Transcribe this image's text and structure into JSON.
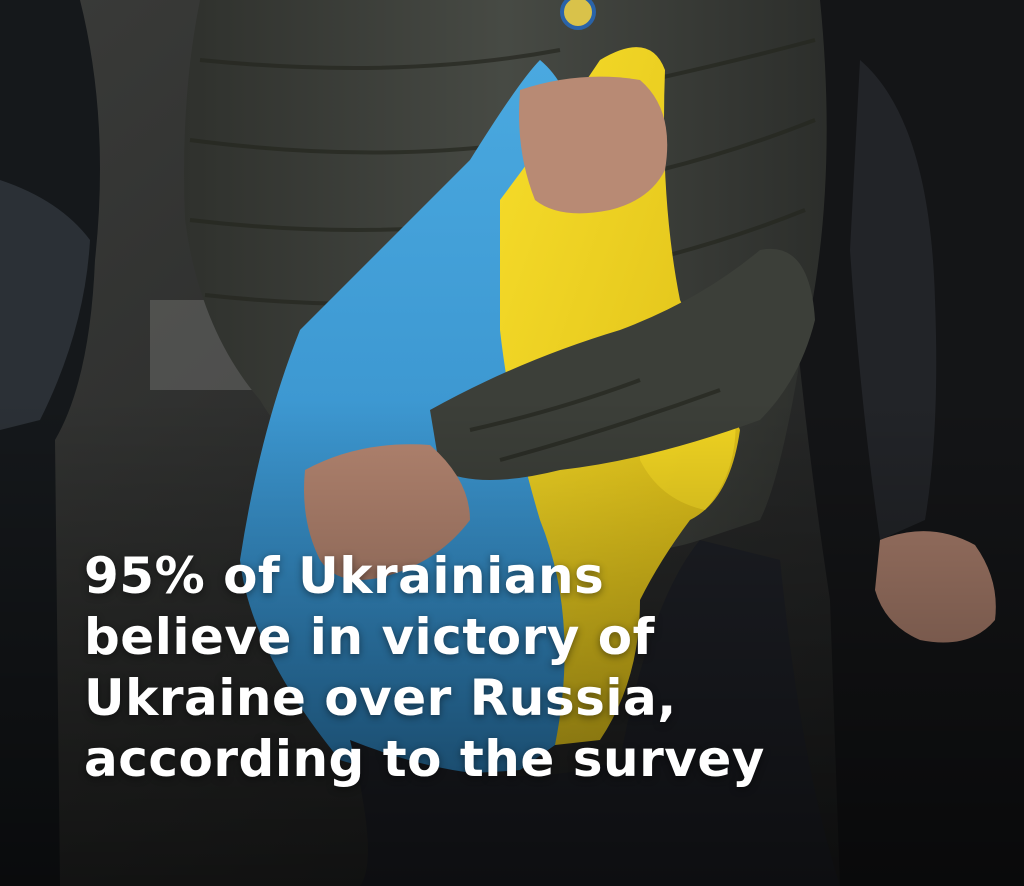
{
  "caption": {
    "lines": [
      "95% of Ukrainians",
      "believe in victory of",
      "Ukraine over Russia,",
      "according to the survey"
    ]
  },
  "colors": {
    "flag_blue": "#3f9fd6",
    "flag_yellow": "#f1d21c",
    "jacket": "#3b3d38",
    "caption_text": "#ffffff"
  }
}
